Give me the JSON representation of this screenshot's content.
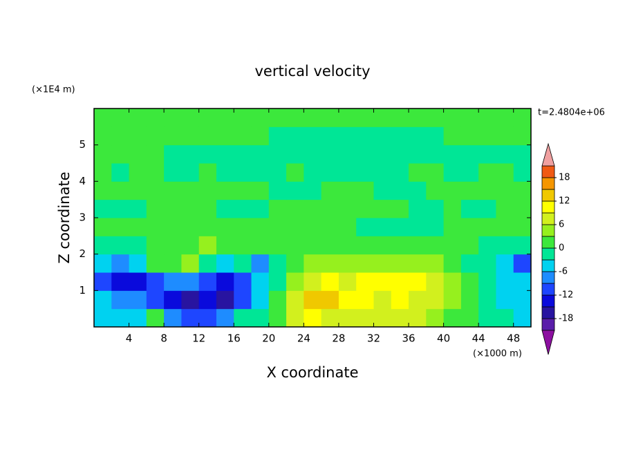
{
  "chart_data": {
    "type": "contour",
    "title": "vertical velocity",
    "x_label": "X coordinate",
    "y_label": "Z coordinate",
    "x_unit": "(×1000 m)",
    "y_unit": "(×1E4 m)",
    "time_label": "t=2.4804e+06",
    "xlim": [
      0,
      50
    ],
    "ylim": [
      0,
      6
    ],
    "xticks": [
      4,
      8,
      12,
      16,
      20,
      24,
      28,
      32,
      36,
      40,
      44,
      48
    ],
    "yticks": [
      1,
      2,
      3,
      4,
      5
    ],
    "x": [
      1,
      3,
      5,
      7,
      9,
      11,
      13,
      15,
      17,
      19,
      21,
      23,
      25,
      27,
      29,
      31,
      33,
      35,
      37,
      39,
      41,
      43,
      45,
      47,
      49
    ],
    "y": [
      0.25,
      0.75,
      1.25,
      1.75,
      2.25,
      2.75,
      3.25,
      3.75,
      4.25,
      4.75,
      5.25,
      5.75
    ],
    "z": [
      [
        -5,
        -4,
        -4,
        2,
        -8,
        -12,
        -10,
        -9,
        -3,
        -1,
        2,
        6,
        9,
        8,
        8,
        7,
        7,
        7,
        6,
        4,
        2,
        1,
        -1,
        -3,
        -4
      ],
      [
        -6,
        -7,
        -8,
        -11,
        -13,
        -16,
        -14,
        -16,
        -10,
        -4,
        1,
        7,
        13,
        12,
        9,
        9,
        8,
        9,
        8,
        6,
        3,
        1,
        -2,
        -4,
        -5
      ],
      [
        -10,
        -14,
        -14,
        -10,
        -8,
        -7,
        -12,
        -14,
        -11,
        -5,
        -1,
        5,
        8,
        9,
        8,
        9,
        10,
        10,
        11,
        8,
        4,
        1,
        -2,
        -5,
        -4
      ],
      [
        -5,
        -7,
        -4,
        2,
        1,
        4,
        -2,
        -5,
        -3,
        -8,
        -1,
        2,
        3,
        4,
        4,
        4,
        4,
        4,
        4,
        4,
        2,
        -1,
        -2,
        -4,
        -10
      ],
      [
        -1,
        -1,
        -1,
        1,
        1,
        1,
        4,
        1,
        1,
        1,
        1,
        1,
        1,
        1,
        1,
        1,
        1,
        1,
        1,
        1,
        1,
        1,
        -1,
        -1,
        -1
      ],
      [
        1,
        1,
        1,
        1,
        1,
        1,
        1,
        1,
        1,
        1,
        1,
        1,
        1,
        1,
        1,
        -1,
        -1,
        -1,
        -1,
        -1,
        1,
        1,
        1,
        1,
        1
      ],
      [
        -1,
        -1,
        -1,
        1,
        1,
        1,
        1,
        -1,
        -1,
        -1,
        1,
        1,
        1,
        1,
        1,
        1,
        1,
        1,
        -1,
        -1,
        1,
        -1,
        -1,
        1,
        1
      ],
      [
        1,
        1,
        1,
        1,
        1,
        1,
        1,
        1,
        1,
        1,
        -1,
        -1,
        -1,
        1,
        1,
        1,
        -1,
        -1,
        -1,
        1,
        1,
        1,
        1,
        1,
        1
      ],
      [
        1,
        -1,
        1,
        1,
        -1,
        -1,
        1,
        -1,
        -1,
        -1,
        -1,
        1,
        -1,
        -1,
        -1,
        -1,
        -1,
        -1,
        1,
        1,
        -1,
        -1,
        1,
        1,
        -1
      ],
      [
        1,
        1,
        1,
        1,
        -1,
        -1,
        -1,
        -1,
        -1,
        -1,
        -1,
        -1,
        -1,
        -1,
        -1,
        -1,
        -1,
        -1,
        -1,
        -1,
        -1,
        -1,
        -1,
        -1,
        -1
      ],
      [
        1,
        1,
        1,
        1,
        1,
        1,
        1,
        1,
        1,
        1,
        -1,
        -1,
        -1,
        -1,
        -1,
        -1,
        -1,
        -1,
        -1,
        -1,
        1,
        1,
        1,
        1,
        1
      ],
      [
        1,
        1,
        1,
        1,
        1,
        1,
        1,
        1,
        1,
        1,
        1,
        1,
        1,
        1,
        1,
        1,
        1,
        1,
        1,
        1,
        1,
        1,
        1,
        1,
        1
      ]
    ],
    "levels": [
      -21,
      -18,
      -15,
      -12,
      -9,
      -6,
      -3,
      0,
      3,
      6,
      9,
      12,
      15,
      18,
      21
    ],
    "colors": [
      "#8c0fa0",
      "#5a1eaa",
      "#2814a0",
      "#0a0adc",
      "#1e46ff",
      "#1e8cff",
      "#00d2f0",
      "#00e696",
      "#3ce83c",
      "#96f01e",
      "#d2f01e",
      "#ffff00",
      "#f0c800",
      "#f59600",
      "#f05a14",
      "#f0a0a0"
    ],
    "colorbar_ticks": [
      -18,
      -12,
      -6,
      0,
      6,
      12,
      18
    ]
  }
}
